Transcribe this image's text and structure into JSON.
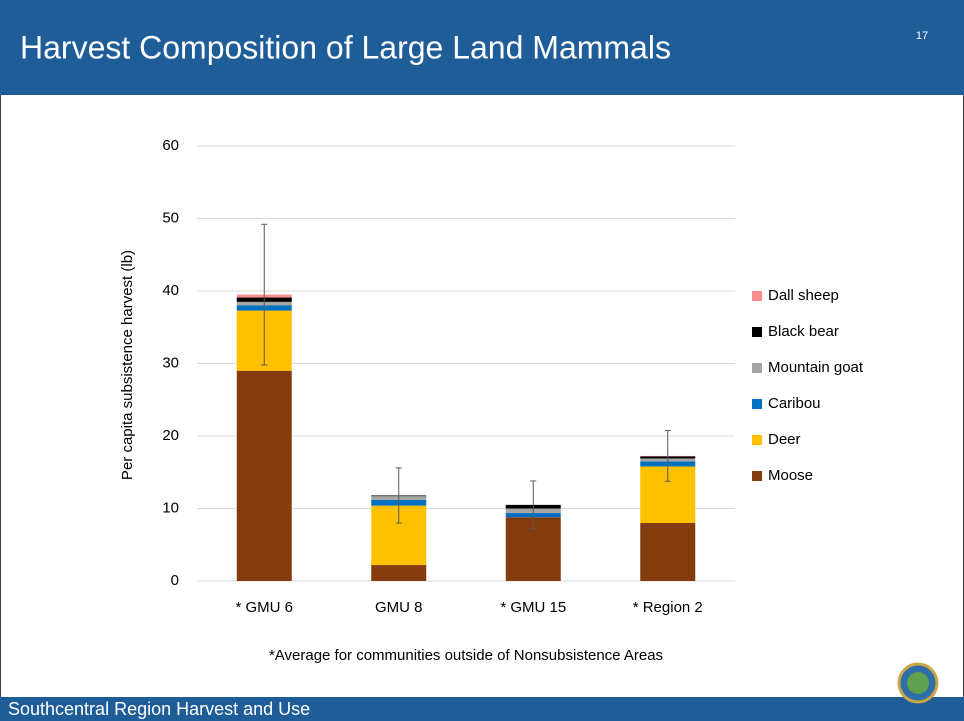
{
  "header": {
    "title": "Harvest Composition of Large Land Mammals",
    "slide_number": "17"
  },
  "footer": {
    "text": "Southcentral Region Harvest and Use"
  },
  "chart_data": {
    "type": "bar",
    "stacked": true,
    "y_label": "Per capita subsistence harvest (lb)",
    "categories": [
      "* GMU 6",
      "GMU 8",
      "* GMU 15",
      "* Region 2"
    ],
    "series": [
      {
        "name": "Moose",
        "color": "#843c0c",
        "values": [
          29,
          2.2,
          8.8,
          8.0
        ]
      },
      {
        "name": "Deer",
        "color": "#ffc000",
        "values": [
          8.3,
          8.2,
          0,
          7.8
        ]
      },
      {
        "name": "Caribou",
        "color": "#0070c0",
        "values": [
          0.7,
          0.8,
          0.6,
          0.7
        ]
      },
      {
        "name": "Mountain goat",
        "color": "#a5a5a5",
        "values": [
          0.5,
          0.5,
          0.6,
          0.4
        ]
      },
      {
        "name": "Black bear",
        "color": "#000000",
        "values": [
          0.6,
          0.1,
          0.5,
          0.3
        ]
      },
      {
        "name": "Dall sheep",
        "color": "#ff8b8b",
        "values": [
          0.4,
          0,
          0,
          0.05
        ]
      }
    ],
    "errors": [
      9.7,
      3.8,
      3.3,
      3.5
    ],
    "ylim": [
      0,
      60
    ],
    "yticks": [
      0,
      10,
      20,
      30,
      40,
      50,
      60
    ],
    "grid": true,
    "legend": "right",
    "footnote": "*Average for communities outside of Nonsubsistence Areas"
  }
}
